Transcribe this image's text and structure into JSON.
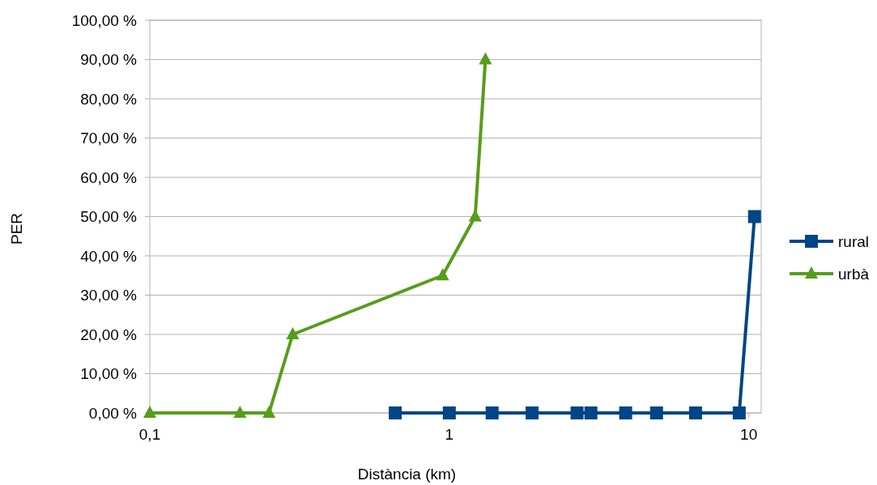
{
  "chart_data": {
    "type": "line",
    "xlabel": "Distància (km)",
    "ylabel": "PER",
    "log": "x",
    "xlim": [
      0.1,
      11
    ],
    "xticks": [
      {
        "value": 0.1,
        "label": "0,1"
      },
      1,
      10
    ],
    "ylim": [
      0,
      100
    ],
    "yticks": [
      {
        "value": 0,
        "label": "0,00 %"
      },
      {
        "value": 10,
        "label": "10,00 %"
      },
      {
        "value": 20,
        "label": "20,00 %"
      },
      {
        "value": 30,
        "label": "30,00 %"
      },
      {
        "value": 40,
        "label": "40,00 %"
      },
      {
        "value": 50,
        "label": "50,00 %"
      },
      {
        "value": 60,
        "label": "60,00 %"
      },
      {
        "value": 70,
        "label": "70,00 %"
      },
      {
        "value": 80,
        "label": "80,00 %"
      },
      {
        "value": 90,
        "label": "90,00 %"
      },
      {
        "value": 100,
        "label": "100,00 %"
      }
    ],
    "grid": "y",
    "legend": "right",
    "line_style": "solid",
    "series": [
      {
        "name": "rural",
        "color": "#004586",
        "marker": "square",
        "x": [
          0.66,
          1,
          1.39,
          1.89,
          2.67,
          2.97,
          3.88,
          4.92,
          6.64,
          9.29,
          10.45
        ],
        "values": [
          0,
          0,
          0,
          0,
          0,
          0,
          0,
          0,
          0,
          0,
          50
        ]
      },
      {
        "name": "urbà",
        "color": "#579d1c",
        "marker": "triangle",
        "x": [
          0.1,
          0.2,
          0.25,
          0.3,
          0.95,
          1.22,
          1.32
        ],
        "values": [
          0,
          0,
          0,
          20,
          35,
          50,
          90
        ]
      }
    ]
  }
}
